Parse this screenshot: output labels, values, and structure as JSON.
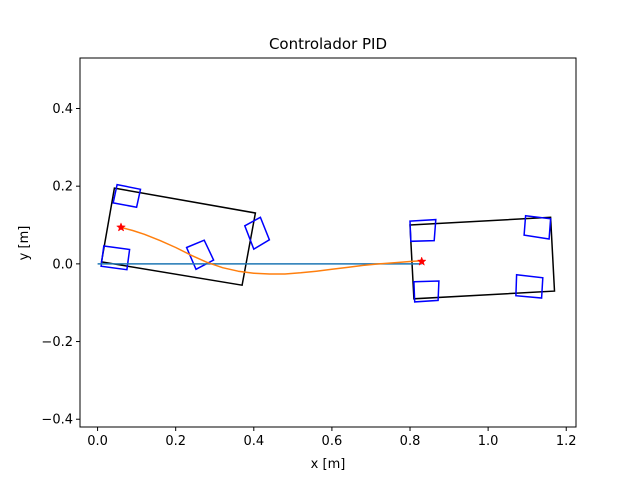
{
  "chart_data": {
    "type": "line",
    "title": "Controlador PID",
    "xlabel": "x [m]",
    "ylabel": "y [m]",
    "xlim": [
      -0.045,
      1.225
    ],
    "ylim": [
      -0.42,
      0.53
    ],
    "xticks": [
      0.0,
      0.2,
      0.4,
      0.6,
      0.8,
      1.0,
      1.2
    ],
    "xtick_labels": [
      "0.0",
      "0.2",
      "0.4",
      "0.6",
      "0.8",
      "1.0",
      "1.2"
    ],
    "yticks": [
      -0.4,
      -0.2,
      0.0,
      0.2,
      0.4
    ],
    "ytick_labels": [
      "−0.4",
      "−0.2",
      "0.0",
      "0.2",
      "0.4"
    ],
    "grid": false,
    "series": [
      {
        "color": "#1f77b4",
        "x": [
          0.0,
          0.83
        ],
        "y": [
          0.0,
          0.0
        ]
      },
      {
        "color": "#ff7f0e",
        "x": [
          0.06,
          0.09,
          0.12,
          0.16,
          0.2,
          0.24,
          0.28,
          0.32,
          0.36,
          0.4,
          0.44,
          0.48,
          0.52,
          0.56,
          0.6,
          0.64,
          0.68,
          0.72,
          0.76,
          0.8,
          0.83
        ],
        "y": [
          0.094,
          0.086,
          0.076,
          0.06,
          0.042,
          0.022,
          0.004,
          -0.01,
          -0.019,
          -0.024,
          -0.026,
          -0.026,
          -0.023,
          -0.019,
          -0.014,
          -0.009,
          -0.004,
          0.0,
          0.003,
          0.006,
          0.008
        ]
      }
    ],
    "markers": [
      {
        "x": 0.06,
        "y": 0.094,
        "color": "#ff0000",
        "marker": "star"
      },
      {
        "x": 0.83,
        "y": 0.006,
        "color": "#ff0000",
        "marker": "star"
      }
    ],
    "shapes": [
      {
        "color": "#000000",
        "points": [
          [
            0.043,
            0.195
          ],
          [
            0.404,
            0.131
          ],
          [
            0.37,
            -0.055
          ],
          [
            0.01,
            0.005
          ]
        ]
      },
      {
        "color": "#0000ff",
        "points": [
          [
            0.05,
            0.204
          ],
          [
            0.11,
            0.192
          ],
          [
            0.1,
            0.146
          ],
          [
            0.04,
            0.157
          ]
        ]
      },
      {
        "color": "#0000ff",
        "points": [
          [
            0.016,
            0.046
          ],
          [
            0.082,
            0.037
          ],
          [
            0.075,
            -0.015
          ],
          [
            0.009,
            -0.006
          ]
        ]
      },
      {
        "color": "#0000ff",
        "points": [
          [
            0.228,
            0.042
          ],
          [
            0.273,
            0.061
          ],
          [
            0.297,
            0.01
          ],
          [
            0.252,
            -0.014
          ]
        ]
      },
      {
        "color": "#0000ff",
        "points": [
          [
            0.377,
            0.098
          ],
          [
            0.417,
            0.12
          ],
          [
            0.44,
            0.062
          ],
          [
            0.4,
            0.038
          ]
        ]
      },
      {
        "color": "#000000",
        "points": [
          [
            0.8,
            0.1
          ],
          [
            1.16,
            0.12
          ],
          [
            1.17,
            -0.07
          ],
          [
            0.81,
            -0.09
          ]
        ]
      },
      {
        "color": "#0000ff",
        "points": [
          [
            0.8,
            0.11
          ],
          [
            0.866,
            0.114
          ],
          [
            0.862,
            0.06
          ],
          [
            0.802,
            0.058
          ]
        ]
      },
      {
        "color": "#0000ff",
        "points": [
          [
            0.81,
            -0.046
          ],
          [
            0.874,
            -0.044
          ],
          [
            0.872,
            -0.094
          ],
          [
            0.812,
            -0.098
          ]
        ]
      },
      {
        "color": "#0000ff",
        "points": [
          [
            1.096,
            0.124
          ],
          [
            1.16,
            0.116
          ],
          [
            1.156,
            0.064
          ],
          [
            1.092,
            0.074
          ]
        ]
      },
      {
        "color": "#0000ff",
        "points": [
          [
            1.073,
            -0.028
          ],
          [
            1.14,
            -0.036
          ],
          [
            1.137,
            -0.088
          ],
          [
            1.071,
            -0.082
          ]
        ]
      }
    ]
  }
}
